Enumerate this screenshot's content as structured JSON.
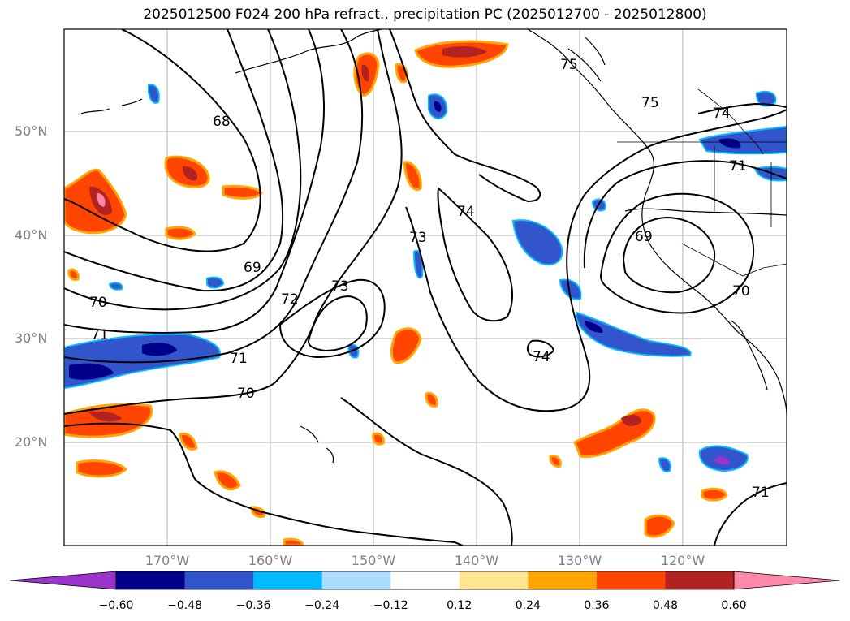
{
  "title": "2025012500 F024 200 hPa refract., precipitation PC (2025012700 - 2025012800)",
  "map": {
    "lat_labels": [
      "50°N",
      "40°N",
      "30°N",
      "20°N"
    ],
    "lon_labels": [
      "170°W",
      "160°W",
      "150°W",
      "140°W",
      "130°W",
      "120°W"
    ],
    "contour_labels": [
      "68",
      "69",
      "69",
      "70",
      "70",
      "70",
      "71",
      "71",
      "71",
      "71",
      "72",
      "73",
      "73",
      "74",
      "74",
      "74",
      "75",
      "75"
    ]
  },
  "colorbar": {
    "colors": [
      "#9933cc",
      "#00008b",
      "#3355cc",
      "#00bbff",
      "#aaddff",
      "#ffffff",
      "#ffe58f",
      "#ffa500",
      "#ff4500",
      "#b22222",
      "#ff88aa"
    ],
    "ticks": [
      "−0.60",
      "−0.48",
      "−0.36",
      "−0.24",
      "−0.12",
      "0.12",
      "0.24",
      "0.36",
      "0.48",
      "0.60"
    ]
  }
}
